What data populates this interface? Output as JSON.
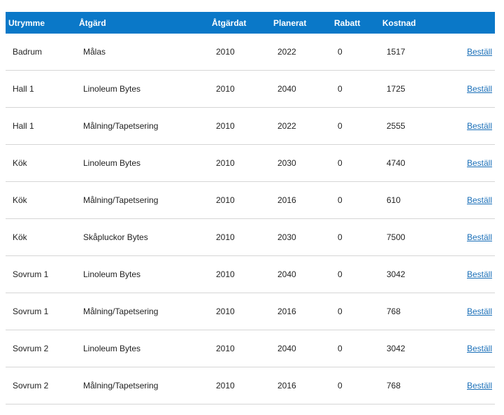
{
  "table": {
    "headers": {
      "room": "Utrymme",
      "action": "Åtgärd",
      "done": "Åtgärdat",
      "planned": "Planerat",
      "discount": "Rabatt",
      "cost": "Kostnad"
    },
    "rows": [
      {
        "room": "Badrum",
        "action": "Målas",
        "done": "2010",
        "planned": "2022",
        "discount": "0",
        "cost": "1517",
        "order": "Beställ"
      },
      {
        "room": "Hall 1",
        "action": "Linoleum Bytes",
        "done": "2010",
        "planned": "2040",
        "discount": "0",
        "cost": "1725",
        "order": "Beställ"
      },
      {
        "room": "Hall 1",
        "action": "Målning/Tapetsering",
        "done": "2010",
        "planned": "2022",
        "discount": "0",
        "cost": "2555",
        "order": "Beställ"
      },
      {
        "room": "Kök",
        "action": "Linoleum Bytes",
        "done": "2010",
        "planned": "2030",
        "discount": "0",
        "cost": "4740",
        "order": "Beställ"
      },
      {
        "room": "Kök",
        "action": "Målning/Tapetsering",
        "done": "2010",
        "planned": "2016",
        "discount": "0",
        "cost": "610",
        "order": "Beställ"
      },
      {
        "room": "Kök",
        "action": "Skåpluckor Bytes",
        "done": "2010",
        "planned": "2030",
        "discount": "0",
        "cost": "7500",
        "order": "Beställ"
      },
      {
        "room": "Sovrum 1",
        "action": "Linoleum Bytes",
        "done": "2010",
        "planned": "2040",
        "discount": "0",
        "cost": "3042",
        "order": "Beställ"
      },
      {
        "room": "Sovrum 1",
        "action": "Målning/Tapetsering",
        "done": "2010",
        "planned": "2016",
        "discount": "0",
        "cost": "768",
        "order": "Beställ"
      },
      {
        "room": "Sovrum 2",
        "action": "Linoleum Bytes",
        "done": "2010",
        "planned": "2040",
        "discount": "0",
        "cost": "3042",
        "order": "Beställ"
      },
      {
        "room": "Sovrum 2",
        "action": "Målning/Tapetsering",
        "done": "2010",
        "planned": "2016",
        "discount": "0",
        "cost": "768",
        "order": "Beställ"
      }
    ]
  },
  "colors": {
    "header_background": "#0a78c8",
    "header_text": "#ffffff",
    "link": "#1a6fb8",
    "row_divider": "#d6d6d6"
  }
}
